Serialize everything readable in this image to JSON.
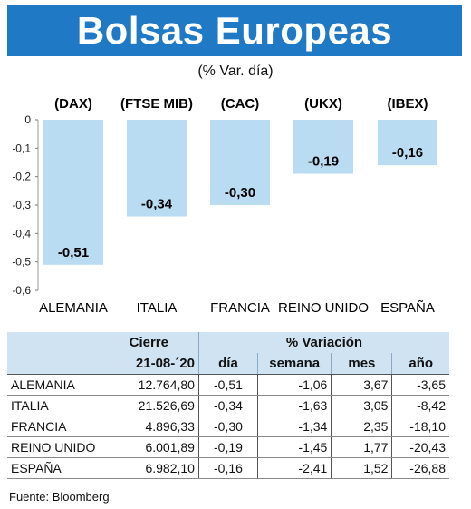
{
  "header": {
    "title": "Bolsas Europeas",
    "subtitle": "(% Var. día)"
  },
  "chart_data": {
    "type": "bar",
    "indices": [
      "(DAX)",
      "(FTSE MIB)",
      "(CAC)",
      "(UKX)",
      "(IBEX)"
    ],
    "categories": [
      "ALEMANIA",
      "ITALIA",
      "FRANCIA",
      "REINO UNIDO",
      "ESPAÑA"
    ],
    "values": [
      -0.51,
      -0.34,
      -0.3,
      -0.19,
      -0.16
    ],
    "value_labels": [
      "-0,51",
      "-0,34",
      "-0,30",
      "-0,19",
      "-0,16"
    ],
    "ylim": [
      -0.6,
      0
    ],
    "yticks": [
      "0",
      "-0,1",
      "-0,2",
      "-0,3",
      "-0,4",
      "-0,5",
      "-0,6"
    ],
    "bar_color": "#b9dcf3",
    "grid": false
  },
  "table": {
    "header_cierre": "Cierre",
    "header_variacion": "% Variación",
    "date": "21-08-´20",
    "cols": [
      "día",
      "semana",
      "mes",
      "año"
    ],
    "rows": [
      {
        "country": "ALEMANIA",
        "cierre": "12.764,80",
        "dia": "-0,51",
        "semana": "-1,06",
        "mes": "3,67",
        "anio": "-3,65"
      },
      {
        "country": "ITALIA",
        "cierre": "21.526,69",
        "dia": "-0,34",
        "semana": "-1,63",
        "mes": "3,05",
        "anio": "-8,42"
      },
      {
        "country": "FRANCIA",
        "cierre": "4.896,33",
        "dia": "-0,30",
        "semana": "-1,34",
        "mes": "2,35",
        "anio": "-18,10"
      },
      {
        "country": "REINO UNIDO",
        "cierre": "6.001,89",
        "dia": "-0,19",
        "semana": "-1,45",
        "mes": "1,77",
        "anio": "-20,43"
      },
      {
        "country": "ESPAÑA",
        "cierre": "6.982,10",
        "dia": "-0,16",
        "semana": "-2,41",
        "mes": "1,52",
        "anio": "-26,88"
      }
    ]
  },
  "source": "Fuente: Bloomberg."
}
